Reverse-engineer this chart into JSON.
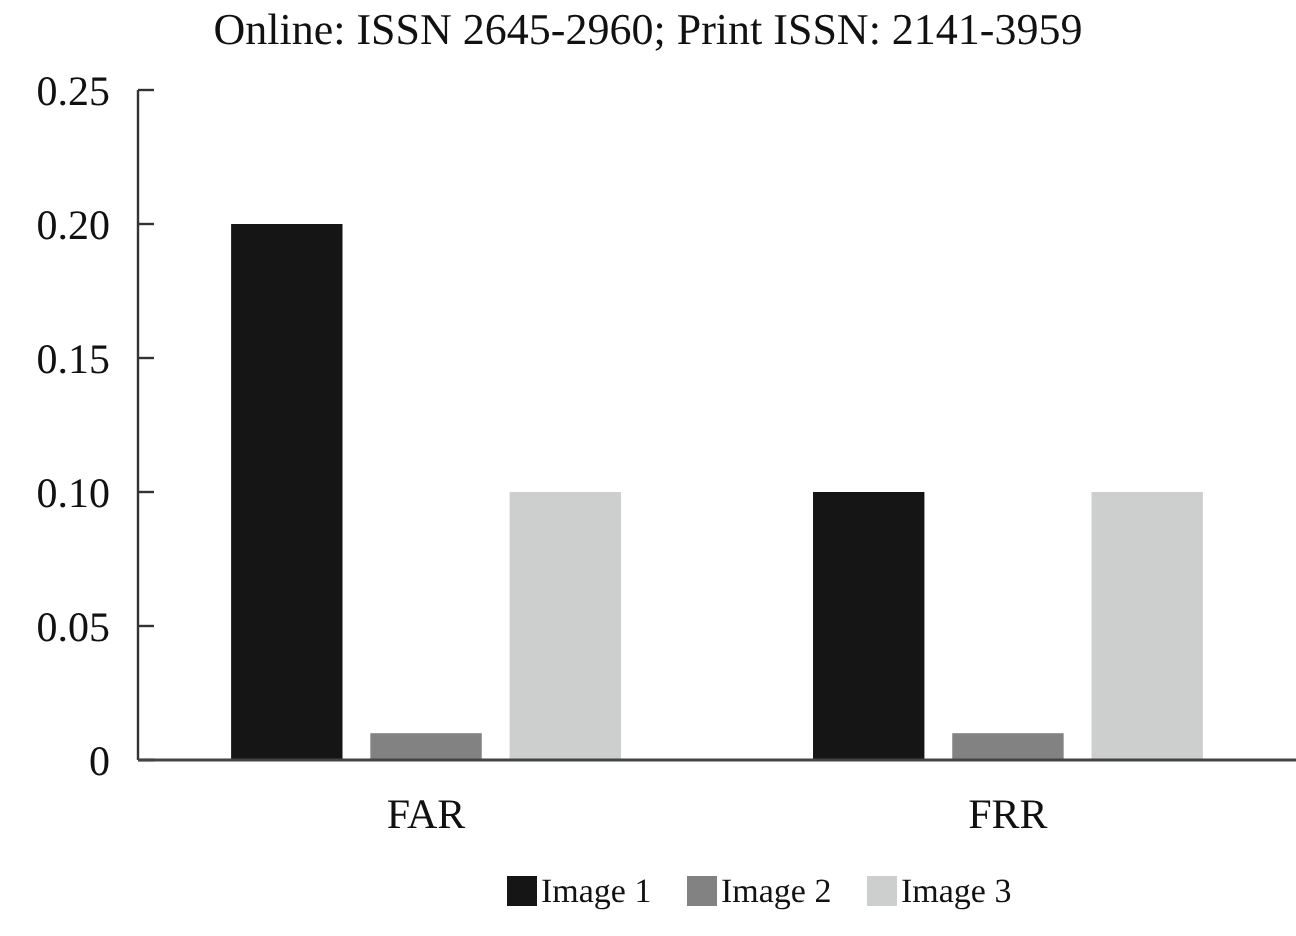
{
  "chart_data": {
    "type": "bar",
    "title": "Online: ISSN 2645-2960; Print ISSN: 2141-3959",
    "categories": [
      "FAR",
      "FRR"
    ],
    "series": [
      {
        "name": "Image 1",
        "color": "#151515",
        "values": [
          0.2,
          0.1
        ]
      },
      {
        "name": "Image 2",
        "color": "#828282",
        "values": [
          0.01,
          0.01
        ]
      },
      {
        "name": "Image 3",
        "color": "#cdcfce",
        "values": [
          0.1,
          0.1
        ]
      }
    ],
    "ylim": [
      0,
      0.25
    ],
    "yticks": [
      {
        "value": 0,
        "label": "0"
      },
      {
        "value": 0.05,
        "label": "0.05"
      },
      {
        "value": 0.1,
        "label": "0.10"
      },
      {
        "value": 0.15,
        "label": "0.15"
      },
      {
        "value": 0.2,
        "label": "0.20"
      },
      {
        "value": 0.25,
        "label": "0.25"
      }
    ],
    "grid": false,
    "legend": "bottom"
  }
}
